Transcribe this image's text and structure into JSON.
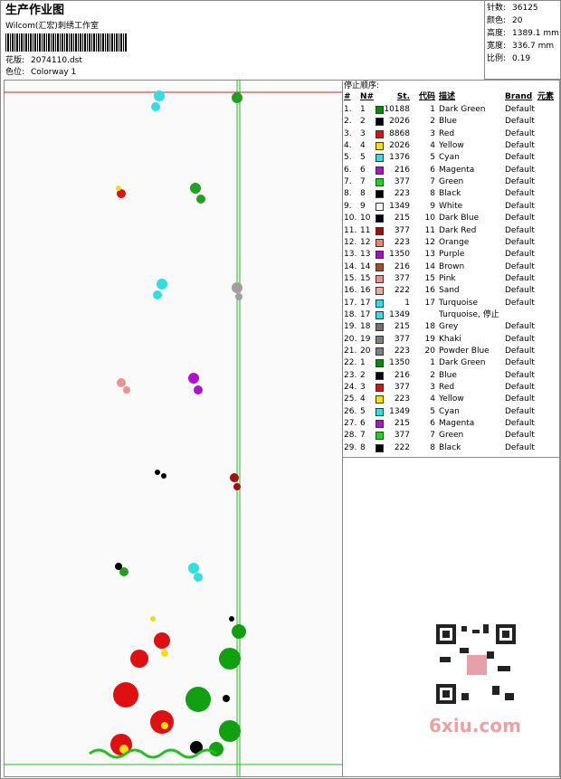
{
  "header": {
    "title": "生产作业图",
    "company": "Wilcom(汇宏)刺绣工作室",
    "file_label": "花版:",
    "file": "2074110.dst",
    "colorway_label": "色位:",
    "colorway": "Colorway 1"
  },
  "stats": [
    {
      "label": "针数:",
      "value": "36125"
    },
    {
      "label": "颜色:",
      "value": "20"
    },
    {
      "label": "高度:",
      "value": "1389.1 mm"
    },
    {
      "label": "宽度:",
      "value": "336.7 mm"
    },
    {
      "label": "比例:",
      "value": "0.19"
    }
  ],
  "table": {
    "title": "停止顺序:",
    "headers": [
      "#",
      "N#",
      "St.",
      "代码",
      "描述",
      "Brand",
      "元素"
    ],
    "rows": [
      {
        "no": "1.",
        "needle": "1",
        "color": "#0a8a0a",
        "stitches": "10188",
        "code": "1",
        "description": "Dark Green",
        "brand": "Default"
      },
      {
        "no": "2.",
        "needle": "2",
        "color": "#000010",
        "stitches": "2026",
        "code": "2",
        "description": "Blue",
        "brand": "Default"
      },
      {
        "no": "3.",
        "needle": "3",
        "color": "#e01010",
        "stitches": "8868",
        "code": "3",
        "description": "Red",
        "brand": "Default"
      },
      {
        "no": "4.",
        "needle": "4",
        "color": "#f0e010",
        "stitches": "2026",
        "code": "4",
        "description": "Yellow",
        "brand": "Default"
      },
      {
        "no": "5.",
        "needle": "5",
        "color": "#30e0e0",
        "stitches": "1376",
        "code": "5",
        "description": "Cyan",
        "brand": "Default"
      },
      {
        "no": "6.",
        "needle": "6",
        "color": "#b010d0",
        "stitches": "216",
        "code": "6",
        "description": "Magenta",
        "brand": "Default"
      },
      {
        "no": "7.",
        "needle": "7",
        "color": "#20d020",
        "stitches": "377",
        "code": "7",
        "description": "Green",
        "brand": "Default"
      },
      {
        "no": "8.",
        "needle": "8",
        "color": "#000000",
        "stitches": "223",
        "code": "8",
        "description": "Black",
        "brand": "Default"
      },
      {
        "no": "9.",
        "needle": "9",
        "color": "#ffffff",
        "stitches": "1349",
        "code": "9",
        "description": "White",
        "brand": "Default"
      },
      {
        "no": "10.",
        "needle": "10",
        "color": "#000010",
        "stitches": "215",
        "code": "10",
        "description": "Dark Blue",
        "brand": "Default"
      },
      {
        "no": "11.",
        "needle": "11",
        "color": "#a01010",
        "stitches": "377",
        "code": "11",
        "description": "Dark Red",
        "brand": "Default"
      },
      {
        "no": "12.",
        "needle": "12",
        "color": "#f08070",
        "stitches": "223",
        "code": "12",
        "description": "Orange",
        "brand": "Default"
      },
      {
        "no": "13.",
        "needle": "13",
        "color": "#a010c0",
        "stitches": "1350",
        "code": "13",
        "description": "Purple",
        "brand": "Default"
      },
      {
        "no": "14.",
        "needle": "14",
        "color": "#a05030",
        "stitches": "216",
        "code": "14",
        "description": "Brown",
        "brand": "Default"
      },
      {
        "no": "15.",
        "needle": "15",
        "color": "#f09090",
        "stitches": "377",
        "code": "15",
        "description": "Pink",
        "brand": "Default"
      },
      {
        "no": "16.",
        "needle": "16",
        "color": "#e0b0a0",
        "stitches": "222",
        "code": "16",
        "description": "Sand",
        "brand": "Default"
      },
      {
        "no": "17.",
        "needle": "17",
        "color": "#30e0e0",
        "stitches": "1",
        "code": "17",
        "description": "Turquoise",
        "brand": "Default"
      },
      {
        "no": "18.",
        "needle": "17",
        "color": "#30e0e0",
        "stitches": "1349",
        "description": "Turquoise, 停止"
      },
      {
        "no": "19.",
        "needle": "18",
        "color": "#707070",
        "stitches": "215",
        "code": "18",
        "description": "Grey",
        "brand": "Default"
      },
      {
        "no": "20.",
        "needle": "19",
        "color": "#808080",
        "stitches": "377",
        "code": "19",
        "description": "Khaki",
        "brand": "Default"
      },
      {
        "no": "21.",
        "needle": "20",
        "color": "#808080",
        "stitches": "223",
        "code": "20",
        "description": "Powder Blue",
        "brand": "Default"
      },
      {
        "no": "22.",
        "needle": "1",
        "color": "#0a8a0a",
        "stitches": "1350",
        "code": "1",
        "description": "Dark Green",
        "brand": "Default"
      },
      {
        "no": "23.",
        "needle": "2",
        "color": "#000010",
        "stitches": "216",
        "code": "2",
        "description": "Blue",
        "brand": "Default"
      },
      {
        "no": "24.",
        "needle": "3",
        "color": "#e01010",
        "stitches": "377",
        "code": "3",
        "description": "Red",
        "brand": "Default"
      },
      {
        "no": "25.",
        "needle": "4",
        "color": "#f0e010",
        "stitches": "223",
        "code": "4",
        "description": "Yellow",
        "brand": "Default"
      },
      {
        "no": "26.",
        "needle": "5",
        "color": "#30e0e0",
        "stitches": "1349",
        "code": "5",
        "description": "Cyan",
        "brand": "Default"
      },
      {
        "no": "27.",
        "needle": "6",
        "color": "#b010d0",
        "stitches": "215",
        "code": "6",
        "description": "Magenta",
        "brand": "Default"
      },
      {
        "no": "28.",
        "needle": "7",
        "color": "#20d020",
        "stitches": "377",
        "code": "7",
        "description": "Green",
        "brand": "Default"
      },
      {
        "no": "29.",
        "needle": "8",
        "color": "#000000",
        "stitches": "222",
        "code": "8",
        "description": "Black",
        "brand": "Default"
      }
    ]
  },
  "watermark": "6xiu.com"
}
